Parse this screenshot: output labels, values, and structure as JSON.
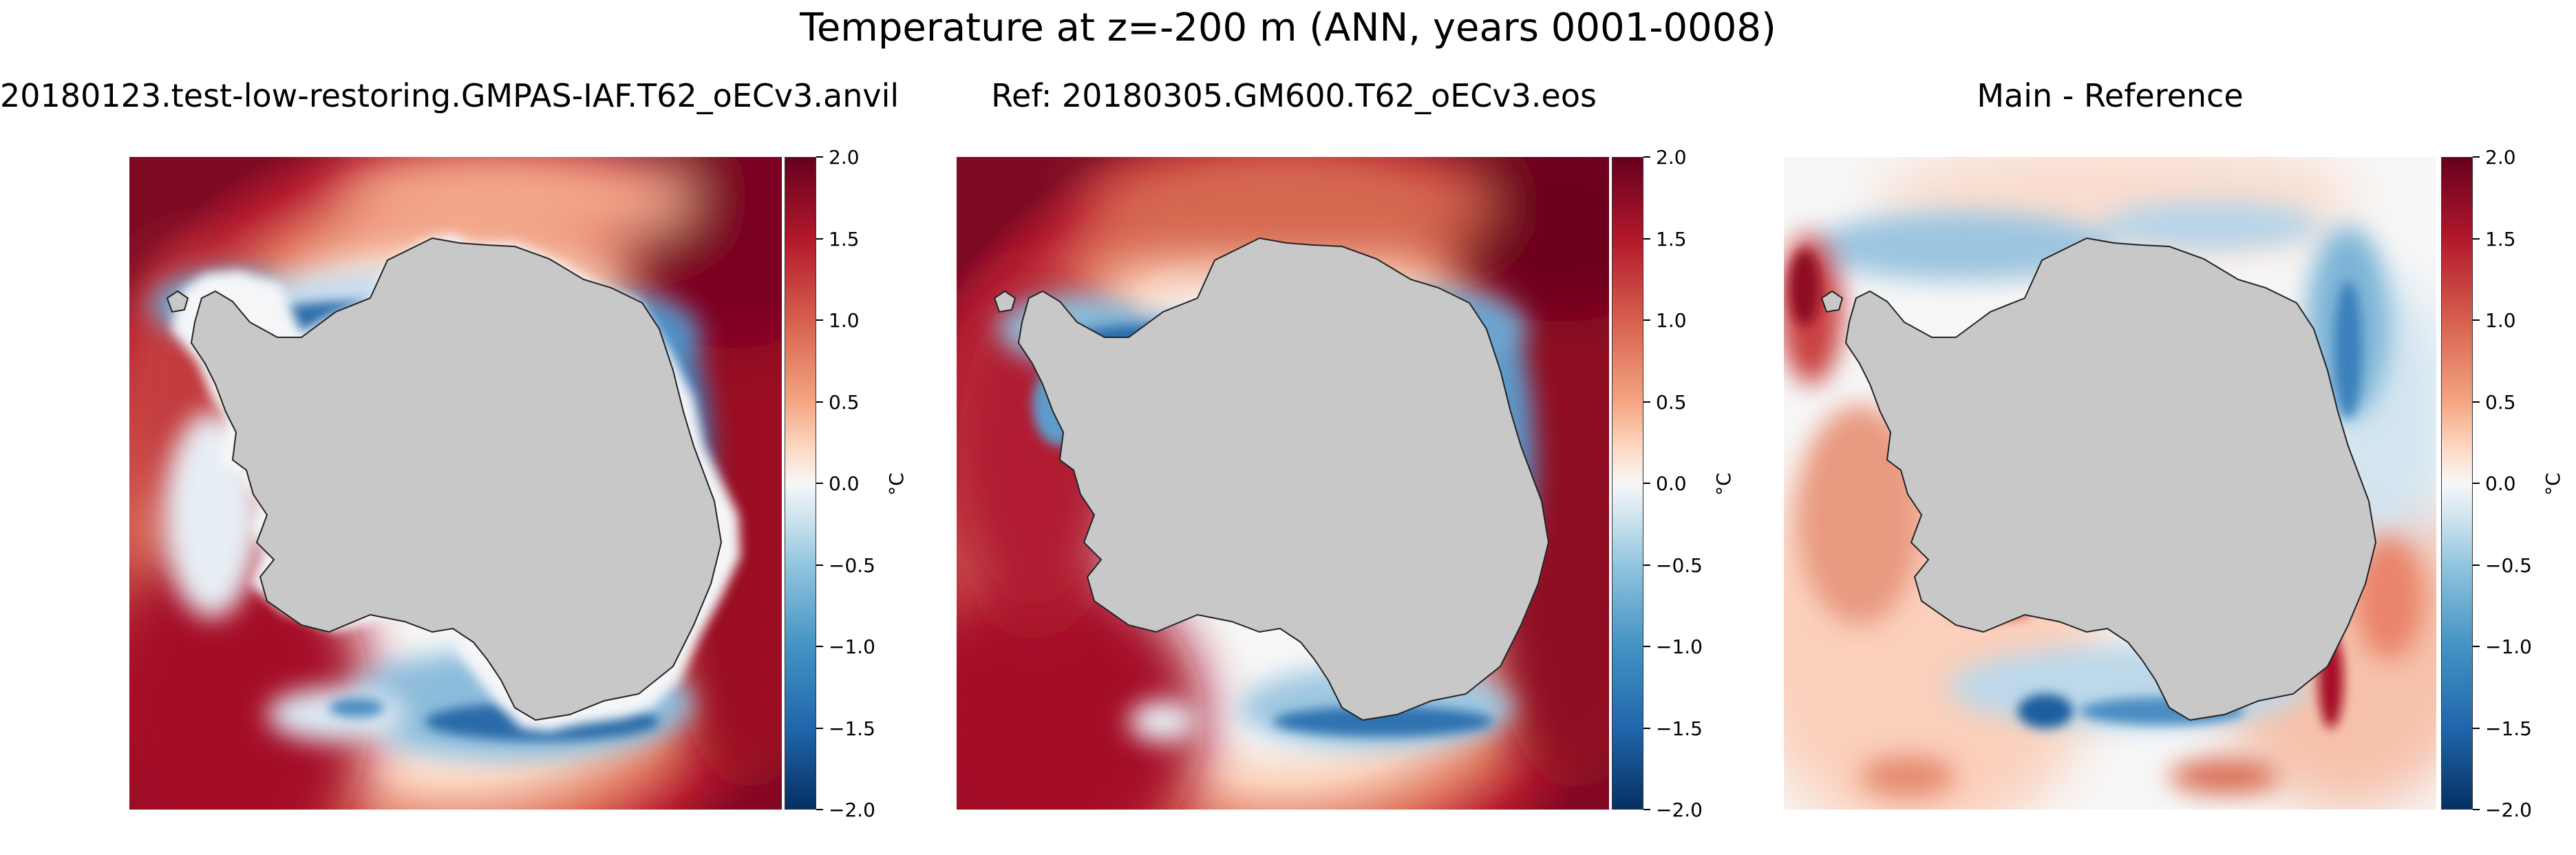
{
  "chart_data": {
    "type": "heatmap",
    "title": "Temperature at z=-200 m (ANN, years 0001-0008)",
    "panels": [
      {
        "title": "20180123.test-low-restoring.GMPAS-IAF.T62_oECv3.anvil",
        "field": "main",
        "colorbar": {
          "vmin": -2.0,
          "vmax": 2.0,
          "ticks": [
            "2.0",
            "1.5",
            "1.0",
            "0.5",
            "0.0",
            "−0.5",
            "−1.0",
            "−1.5",
            "−2.0"
          ],
          "unit": "°C",
          "cmap": "RdBu_r"
        }
      },
      {
        "title": "Ref: 20180305.GM600.T62_oECv3.eos",
        "field": "reference",
        "colorbar": {
          "vmin": -2.0,
          "vmax": 2.0,
          "ticks": [
            "2.0",
            "1.5",
            "1.0",
            "0.5",
            "0.0",
            "−0.5",
            "−1.0",
            "−1.5",
            "−2.0"
          ],
          "unit": "°C",
          "cmap": "RdBu_r"
        }
      },
      {
        "title": "Main - Reference",
        "field": "difference",
        "colorbar": {
          "vmin": -2.0,
          "vmax": 2.0,
          "ticks": [
            "2.0",
            "1.5",
            "1.0",
            "0.5",
            "0.0",
            "−0.5",
            "−1.0",
            "−1.5",
            "−2.0"
          ],
          "unit": "°C",
          "cmap": "RdBu_r"
        }
      }
    ]
  }
}
